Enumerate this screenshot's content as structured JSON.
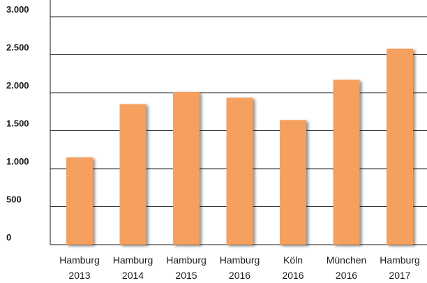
{
  "chart_data": {
    "type": "bar",
    "categories": [
      [
        "Hamburg",
        "2013"
      ],
      [
        "Hamburg",
        "2014"
      ],
      [
        "Hamburg",
        "2015"
      ],
      [
        "Hamburg",
        "2016"
      ],
      [
        "Köln",
        "2016"
      ],
      [
        "München",
        "2016"
      ],
      [
        "Hamburg",
        "2017"
      ]
    ],
    "values": [
      1150,
      1850,
      2010,
      1935,
      1640,
      2170,
      2580
    ],
    "ylim": [
      0,
      3000
    ],
    "yticks": [
      0,
      500,
      1000,
      1500,
      2000,
      2500,
      3000
    ],
    "ytick_labels": [
      "0",
      "500",
      "1.000",
      "1.500",
      "2.000",
      "2.500",
      "3.000"
    ],
    "title": "",
    "xlabel": "",
    "ylabel": "",
    "grid": true,
    "colors": {
      "bar": "#f5a05e",
      "bar_shadow": "#9a9a9a",
      "grid": "#1a1a1a",
      "text": "#1a1a1a"
    }
  }
}
